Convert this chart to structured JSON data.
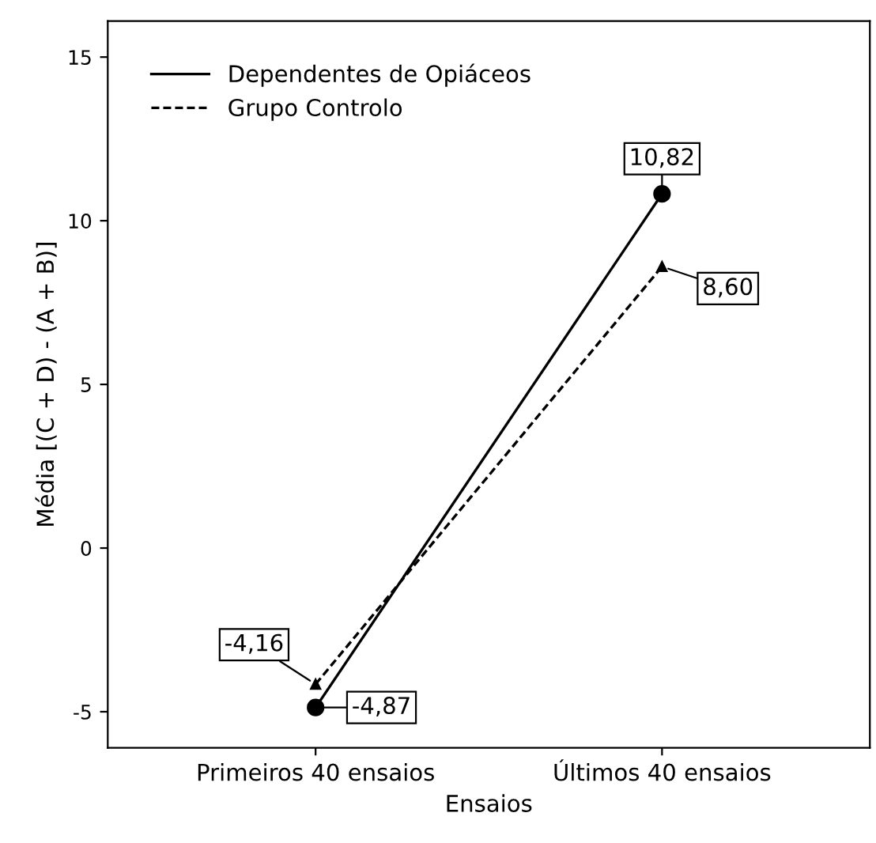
{
  "chart_data": {
    "type": "line",
    "xlabel": "Ensaios",
    "ylabel": "Média [(C + D) - (A + B)]",
    "categories": [
      "Primeiros 40 ensaios",
      "Últimos 40 ensaios"
    ],
    "series": [
      {
        "name": "Dependentes de Opiáceos",
        "color": "#000000",
        "values": [
          -4.87,
          10.82
        ],
        "value_labels": [
          "-4,87",
          "10,82"
        ],
        "marker": "circle",
        "line_style": "solid"
      },
      {
        "name": "Grupo Controlo",
        "color": "#000000",
        "values": [
          -4.16,
          8.6
        ],
        "value_labels": [
          "-4,16",
          "8,60"
        ],
        "marker": "triangle",
        "line_style": "dashed"
      }
    ],
    "ylim": [
      -6.1,
      16.1
    ],
    "yticks": [
      -5,
      0,
      5,
      10,
      15
    ],
    "grid": false,
    "legend": "top left"
  }
}
